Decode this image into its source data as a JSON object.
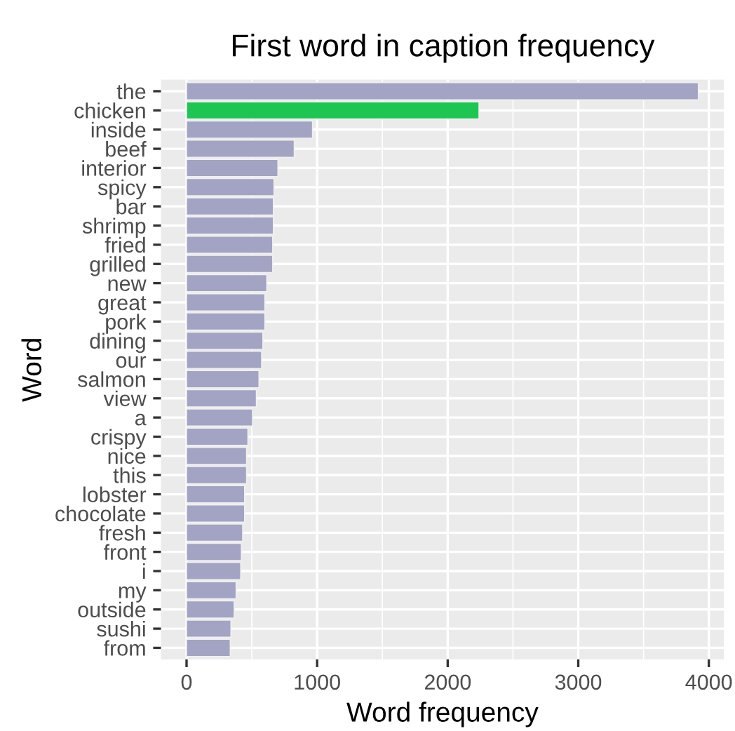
{
  "chart_data": {
    "type": "bar",
    "orientation": "horizontal",
    "title": "First word in caption frequency",
    "xlabel": "Word frequency",
    "ylabel": "Word",
    "categories": [
      "the",
      "chicken",
      "inside",
      "beef",
      "interior",
      "spicy",
      "bar",
      "shrimp",
      "fried",
      "grilled",
      "new",
      "great",
      "pork",
      "dining",
      "our",
      "salmon",
      "view",
      "a",
      "crispy",
      "nice",
      "this",
      "lobster",
      "chocolate",
      "fresh",
      "front",
      "i",
      "my",
      "outside",
      "sushi",
      "from"
    ],
    "values": [
      3920,
      2240,
      965,
      825,
      700,
      670,
      665,
      665,
      660,
      660,
      615,
      600,
      600,
      585,
      575,
      555,
      535,
      505,
      470,
      460,
      460,
      445,
      445,
      430,
      420,
      415,
      380,
      365,
      340,
      335
    ],
    "colors": [
      "#a3a3c4",
      "#1dc653",
      "#a3a3c4",
      "#a3a3c4",
      "#a3a3c4",
      "#a3a3c4",
      "#a3a3c4",
      "#a3a3c4",
      "#a3a3c4",
      "#a3a3c4",
      "#a3a3c4",
      "#a3a3c4",
      "#a3a3c4",
      "#a3a3c4",
      "#a3a3c4",
      "#a3a3c4",
      "#a3a3c4",
      "#a3a3c4",
      "#a3a3c4",
      "#a3a3c4",
      "#a3a3c4",
      "#a3a3c4",
      "#a3a3c4",
      "#a3a3c4",
      "#a3a3c4",
      "#a3a3c4",
      "#a3a3c4",
      "#a3a3c4",
      "#a3a3c4",
      "#a3a3c4"
    ],
    "xlim": [
      -196,
      4116
    ],
    "xticks": [
      0,
      1000,
      2000,
      3000,
      4000
    ],
    "grid": true
  }
}
